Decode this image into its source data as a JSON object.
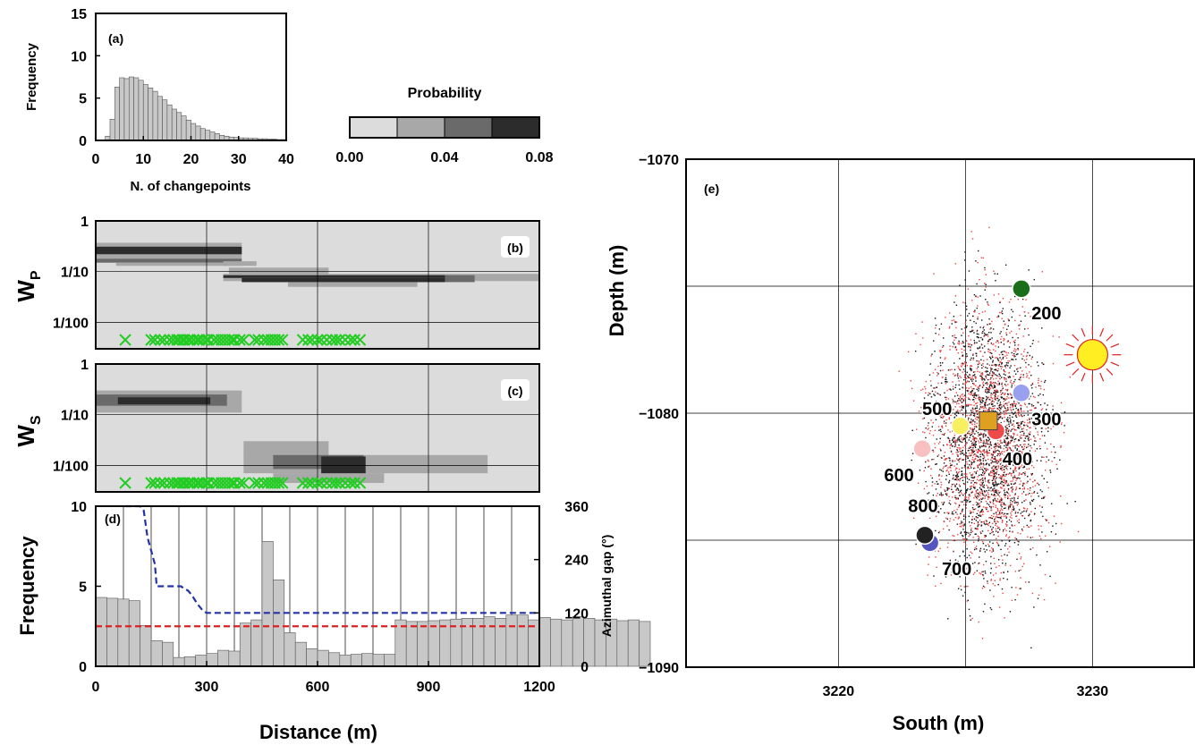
{
  "chart_data": [
    {
      "panel": "a",
      "type": "bar",
      "panel_label": "(a)",
      "xlabel": "N. of changepoints",
      "ylabel": "Frequency",
      "xlim": [
        0,
        40
      ],
      "ylim": [
        0,
        15
      ],
      "x_ticks": [
        "0",
        "10",
        "20",
        "30",
        "40"
      ],
      "y_ticks": [
        "0",
        "5",
        "10",
        "15"
      ],
      "bin_width": 1,
      "bin_starts": [
        2,
        3,
        4,
        5,
        6,
        7,
        8,
        9,
        10,
        11,
        12,
        13,
        14,
        15,
        16,
        17,
        18,
        19,
        20,
        21,
        22,
        23,
        24,
        25,
        26,
        27,
        28,
        29,
        30,
        31,
        32,
        33,
        34,
        35,
        36,
        37,
        38,
        39
      ],
      "values": [
        0.5,
        2.5,
        6.3,
        7.4,
        7.3,
        7.5,
        7.4,
        7.1,
        6.6,
        6.2,
        5.8,
        5.2,
        4.8,
        4.2,
        3.7,
        3.3,
        2.9,
        2.4,
        2.0,
        1.7,
        1.4,
        1.2,
        1.0,
        0.8,
        0.6,
        0.5,
        0.4,
        0.35,
        0.3,
        0.3,
        0.25,
        0.25,
        0.2,
        0.2,
        0.15,
        0.15,
        0.1,
        0.1
      ],
      "color": "#c8c8c8"
    },
    {
      "panel": "colorbar",
      "type": "legend",
      "title": "Probability",
      "ticks": [
        "0.00",
        "0.04",
        "0.08"
      ],
      "colors": [
        "#dcdcdc",
        "#a8a8a8",
        "#6a6a6a",
        "#2c2c2c"
      ]
    },
    {
      "panel": "b",
      "type": "heatmap",
      "panel_label": "(b)",
      "ylabel": "W",
      "ylabel_sub": "P",
      "xlim": [
        0,
        1200
      ],
      "ylim_log": [
        0.003,
        1
      ],
      "y_ticks": [
        {
          "v": 1,
          "label": "1"
        },
        {
          "v": 0.1,
          "label": "1/10"
        },
        {
          "v": 0.01,
          "label": "1/100"
        }
      ],
      "grid_x": [
        300,
        600,
        900
      ],
      "background": "#dcdcdc",
      "blocks": [
        {
          "x0": 0,
          "x1": 395,
          "y0": 0.18,
          "y1": 0.37,
          "color": "#a8a8a8"
        },
        {
          "x0": 0,
          "x1": 395,
          "y0": 0.22,
          "y1": 0.31,
          "color": "#2c2c2c"
        },
        {
          "x0": 0,
          "x1": 395,
          "y0": 0.15,
          "y1": 0.18,
          "color": "#6a6a6a"
        },
        {
          "x0": 55,
          "x1": 395,
          "y0": 0.13,
          "y1": 0.15,
          "color": "#a8a8a8"
        },
        {
          "x0": 345,
          "x1": 435,
          "y0": 0.13,
          "y1": 0.16,
          "color": "#a8a8a8"
        },
        {
          "x0": 360,
          "x1": 630,
          "y0": 0.09,
          "y1": 0.12,
          "color": "#a8a8a8"
        },
        {
          "x0": 345,
          "x1": 1200,
          "y0": 0.065,
          "y1": 0.09,
          "color": "#a8a8a8"
        },
        {
          "x0": 345,
          "x1": 945,
          "y0": 0.075,
          "y1": 0.085,
          "color": "#2c2c2c"
        },
        {
          "x0": 395,
          "x1": 945,
          "y0": 0.062,
          "y1": 0.075,
          "color": "#2c2c2c"
        },
        {
          "x0": 945,
          "x1": 1025,
          "y0": 0.062,
          "y1": 0.085,
          "color": "#6a6a6a"
        },
        {
          "x0": 520,
          "x1": 870,
          "y0": 0.05,
          "y1": 0.062,
          "color": "#a8a8a8"
        }
      ],
      "markers_y": 0.0045,
      "marker_color": "#22cc22",
      "markers_x": [
        80,
        150,
        160,
        175,
        185,
        200,
        210,
        220,
        225,
        235,
        240,
        250,
        255,
        265,
        275,
        280,
        290,
        300,
        305,
        320,
        330,
        340,
        350,
        360,
        370,
        375,
        390,
        400,
        430,
        440,
        455,
        465,
        475,
        485,
        495,
        505,
        560,
        575,
        585,
        600,
        610,
        625,
        640,
        650,
        660,
        675,
        690,
        700,
        715
      ]
    },
    {
      "panel": "c",
      "type": "heatmap",
      "panel_label": "(c)",
      "ylabel": "W",
      "ylabel_sub": "S",
      "xlim": [
        0,
        1200
      ],
      "ylim_log": [
        0.003,
        1
      ],
      "y_ticks": [
        {
          "v": 1,
          "label": "1"
        },
        {
          "v": 0.1,
          "label": "1/10"
        },
        {
          "v": 0.01,
          "label": "1/100"
        }
      ],
      "grid_x": [
        300,
        600,
        900
      ],
      "background": "#dcdcdc",
      "blocks": [
        {
          "x0": 0,
          "x1": 395,
          "y0": 0.11,
          "y1": 0.3,
          "color": "#a8a8a8"
        },
        {
          "x0": 0,
          "x1": 355,
          "y0": 0.15,
          "y1": 0.25,
          "color": "#6a6a6a"
        },
        {
          "x0": 60,
          "x1": 310,
          "y0": 0.16,
          "y1": 0.22,
          "color": "#2c2c2c"
        },
        {
          "x0": 400,
          "x1": 630,
          "y0": 0.015,
          "y1": 0.03,
          "color": "#a8a8a8"
        },
        {
          "x0": 400,
          "x1": 1060,
          "y0": 0.007,
          "y1": 0.016,
          "color": "#a8a8a8"
        },
        {
          "x0": 480,
          "x1": 725,
          "y0": 0.0085,
          "y1": 0.016,
          "color": "#6a6a6a"
        },
        {
          "x0": 610,
          "x1": 730,
          "y0": 0.006,
          "y1": 0.015,
          "color": "#2c2c2c"
        },
        {
          "x0": 480,
          "x1": 780,
          "y0": 0.0045,
          "y1": 0.007,
          "color": "#a8a8a8"
        }
      ],
      "markers_y": 0.0045,
      "marker_color": "#22cc22",
      "markers_x": [
        80,
        150,
        160,
        175,
        185,
        200,
        210,
        220,
        225,
        235,
        240,
        250,
        255,
        265,
        275,
        280,
        290,
        300,
        305,
        320,
        330,
        340,
        350,
        360,
        370,
        375,
        390,
        400,
        430,
        440,
        455,
        465,
        475,
        485,
        495,
        505,
        560,
        575,
        585,
        600,
        610,
        625,
        640,
        650,
        660,
        675,
        690,
        700,
        715
      ]
    },
    {
      "panel": "d",
      "type": "bar",
      "panel_label": "(d)",
      "xlabel": "Distance (m)",
      "ylabel": "Frequency",
      "y2label": "Azimuthal gap (°)",
      "xlim": [
        0,
        1200
      ],
      "ylim": [
        0,
        10
      ],
      "y2lim": [
        0,
        360
      ],
      "x_ticks": [
        "0",
        "300",
        "600",
        "900",
        "1200"
      ],
      "y_ticks": [
        "0",
        "5",
        "10"
      ],
      "y2_ticks": [
        "0",
        "120",
        "240",
        "360"
      ],
      "bin_width": 30,
      "values": [
        4.3,
        4.25,
        4.2,
        4.1,
        2.55,
        1.6,
        1.5,
        0.55,
        0.6,
        0.7,
        0.8,
        1.0,
        0.95,
        2.7,
        2.9,
        7.8,
        5.4,
        2.1,
        1.5,
        1.1,
        1.0,
        0.85,
        0.7,
        0.75,
        0.8,
        0.75,
        0.75,
        2.9,
        2.8,
        2.8,
        2.85,
        2.9,
        2.95,
        3.0,
        3.0,
        3.1,
        3.0,
        3.2,
        3.2,
        2.9,
        3.05,
        2.95,
        2.9,
        3.1,
        3.0,
        2.9,
        2.95,
        2.85,
        2.9,
        2.8
      ],
      "bar_color": "#c8c8c8",
      "reference_frequency": 2.5,
      "reference_color": "#e02020",
      "gap_series": {
        "color": "#2233aa",
        "x": [
          80,
          120,
          130,
          140,
          150,
          160,
          165,
          180,
          230,
          250,
          260,
          275,
          290,
          300,
          1200
        ],
        "y": [
          360,
          360,
          350,
          290,
          260,
          230,
          180,
          180,
          180,
          170,
          160,
          140,
          125,
          120,
          120
        ]
      }
    },
    {
      "panel": "e",
      "type": "scatter",
      "panel_label": "(e)",
      "xlabel": "South (m)",
      "ylabel": "Depth (m)",
      "xlim": [
        3214,
        3234
      ],
      "ylim": [
        -1090,
        -1070
      ],
      "x_ticks": [
        {
          "v": 3220,
          "label": "3220"
        },
        {
          "v": 3230,
          "label": "3230"
        }
      ],
      "y_ticks": [
        {
          "v": -1070,
          "label": "−1070"
        },
        {
          "v": -1080,
          "label": "−1080"
        },
        {
          "v": -1090,
          "label": "−1090"
        }
      ],
      "grid_x": [
        3220,
        3225,
        3230
      ],
      "grid_y": [
        -1075,
        -1080,
        -1085
      ],
      "cloud": {
        "center_x": 3225.9,
        "center_y": -1081,
        "spread_x": 1.55,
        "spread_y": 3.6,
        "colors": [
          "#111111",
          "#ee4444"
        ]
      },
      "points": [
        {
          "label": "200",
          "x": 3227.2,
          "y": -1075.1,
          "color": "#1a6e1a"
        },
        {
          "label": "300",
          "x": 3227.2,
          "y": -1079.2,
          "color": "#9aa0f0"
        },
        {
          "label": "400",
          "x": 3226.2,
          "y": -1080.7,
          "color": "#ee4a4a"
        },
        {
          "label": "500",
          "x": 3224.8,
          "y": -1080.5,
          "color": "#f8f060"
        },
        {
          "label": "600",
          "x": 3223.3,
          "y": -1081.4,
          "color": "#f8c0c0"
        },
        {
          "label": "700",
          "x": 3223.6,
          "y": -1085.1,
          "color": "#5555c0"
        },
        {
          "label": "800",
          "x": 3223.4,
          "y": -1084.8,
          "color": "#222222"
        }
      ],
      "square": {
        "x": 3225.9,
        "y": -1080.3,
        "color": "#dda020"
      },
      "sun": {
        "x": 3230,
        "y": -1077.7,
        "color": "#ffee22",
        "rays": "#dd2222"
      }
    }
  ]
}
